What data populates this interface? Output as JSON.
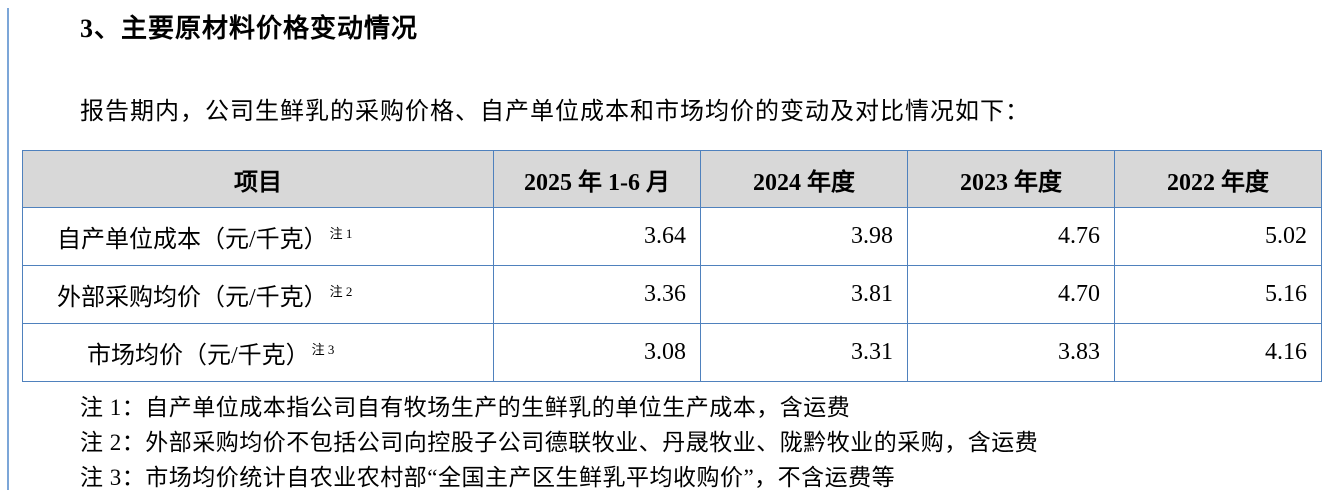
{
  "page": {
    "title": "3、主要原材料价格变动情况",
    "intro": "报告期内，公司生鲜乳的采购价格、自产单位成本和市场均价的变动及对比情况如下：",
    "table": {
      "headers": [
        "项目",
        "2025 年 1-6 月",
        "2024 年度",
        "2023 年度",
        "2022 年度"
      ],
      "rows": [
        {
          "label": "自产单位成本（元/千克）",
          "note_ref": "注 1",
          "values": [
            "3.64",
            "3.98",
            "4.76",
            "5.02"
          ]
        },
        {
          "label": "外部采购均价（元/千克）",
          "note_ref": "注 2",
          "values": [
            "3.36",
            "3.81",
            "4.70",
            "5.16"
          ]
        },
        {
          "label": "市场均价（元/千克）",
          "note_ref": "注 3",
          "values": [
            "3.08",
            "3.31",
            "3.83",
            "4.16"
          ]
        }
      ]
    },
    "notes": [
      "注 1：自产单位成本指公司自有牧场生产的生鲜乳的单位生产成本，含运费",
      "注 2：外部采购均价不包括公司向控股子公司德联牧业、丹晟牧业、陇黔牧业的采购，含运费",
      "注 3：市场均价统计自农业农村部“全国主产区生鲜乳平均收购价”，不含运费等"
    ],
    "colors": {
      "table_border": "#4f81bd",
      "header_bg": "#d8d8d8",
      "page_edge_line": "#7ca6d8",
      "text": "#000000"
    }
  }
}
